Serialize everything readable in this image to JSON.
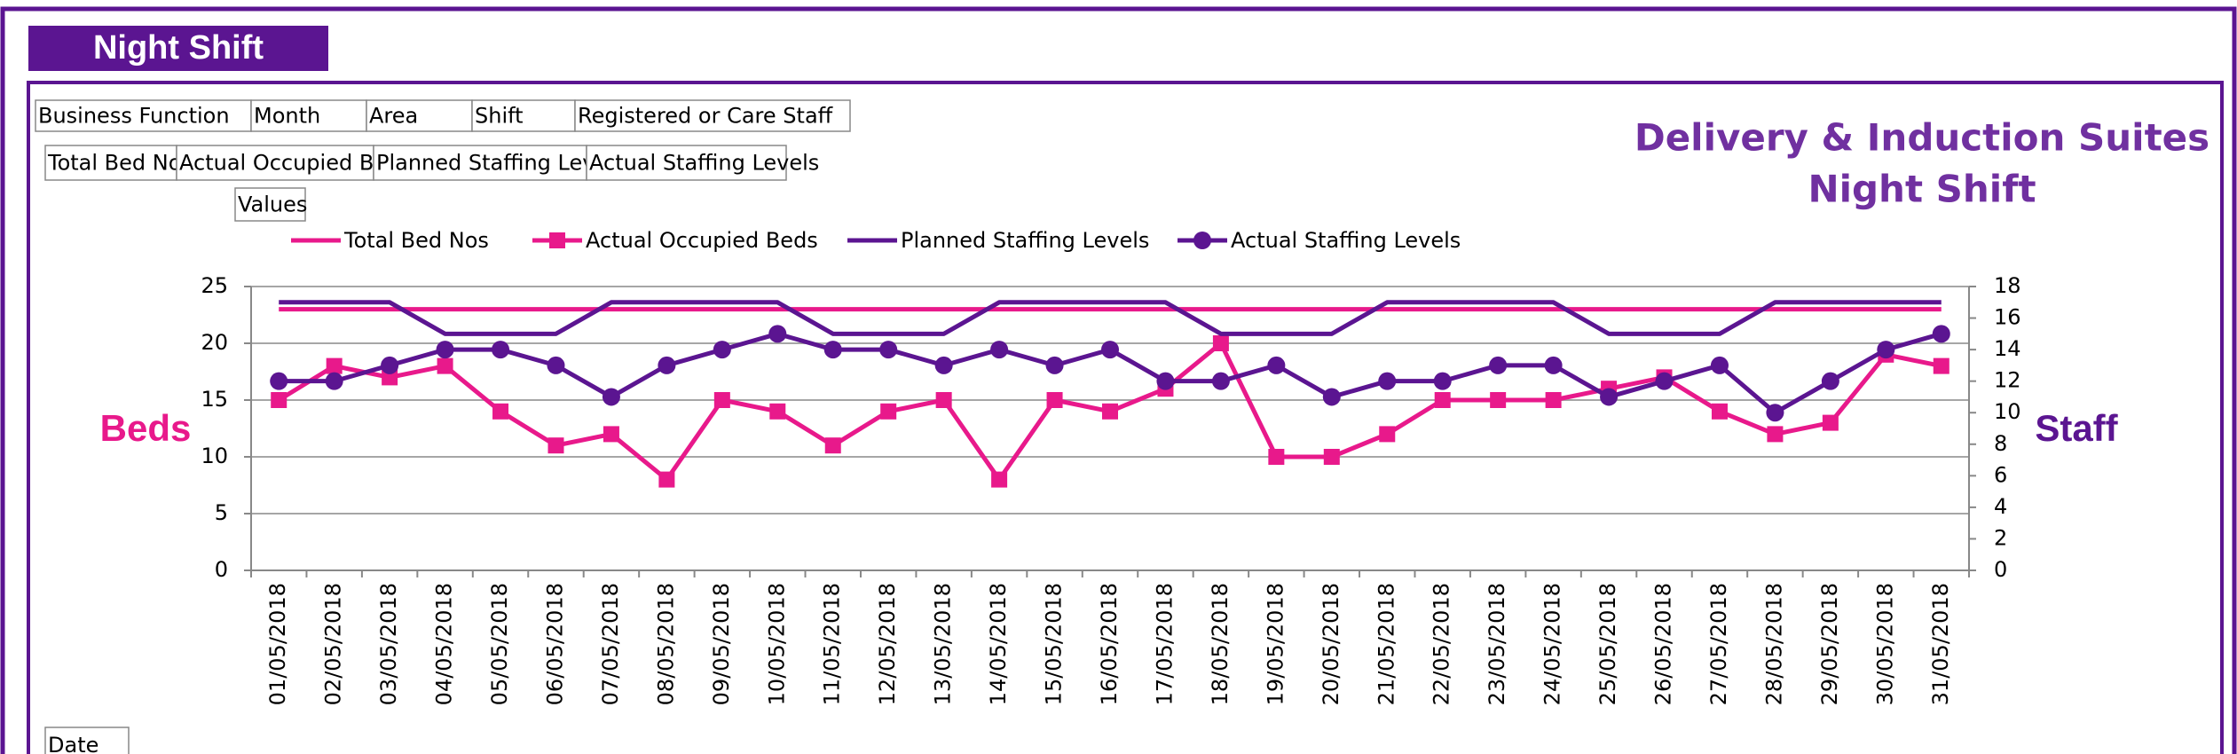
{
  "header": "Night Shift",
  "filter_fields": [
    "Business Function",
    "Month",
    "Area",
    "Shift",
    "Registered or Care Staff"
  ],
  "value_fields": [
    "Total Bed Nos",
    "Actual Occupied Beds",
    "Planned Staffing Levels",
    "Actual Staffing Levels"
  ],
  "values_button": "Values",
  "axis_field": "Date",
  "chart_data": {
    "type": "line",
    "title": "Delivery & Induction Suites",
    "subtitle": "Night Shift",
    "y_label": "Beds",
    "y2_label": "Staff",
    "categories": [
      "01/05/2018",
      "02/05/2018",
      "03/05/2018",
      "04/05/2018",
      "05/05/2018",
      "06/05/2018",
      "07/05/2018",
      "08/05/2018",
      "09/05/2018",
      "10/05/2018",
      "11/05/2018",
      "12/05/2018",
      "13/05/2018",
      "14/05/2018",
      "15/05/2018",
      "16/05/2018",
      "17/05/2018",
      "18/05/2018",
      "19/05/2018",
      "20/05/2018",
      "21/05/2018",
      "22/05/2018",
      "23/05/2018",
      "24/05/2018",
      "25/05/2018",
      "26/05/2018",
      "27/05/2018",
      "28/05/2018",
      "29/05/2018",
      "30/05/2018",
      "31/05/2018"
    ],
    "series": [
      {
        "name": "Total Bed Nos",
        "color": "#e8198b",
        "marker": "none",
        "values": [
          23,
          23,
          23,
          23,
          23,
          23,
          23,
          23,
          23,
          23,
          23,
          23,
          23,
          23,
          23,
          23,
          23,
          23,
          23,
          23,
          23,
          23,
          23,
          23,
          23,
          23,
          23,
          23,
          23,
          23,
          23
        ]
      },
      {
        "name": "Actual Occupied Beds",
        "color": "#e8198b",
        "marker": "square",
        "values": [
          15,
          18,
          17,
          18,
          14,
          11,
          12,
          8,
          15,
          14,
          11,
          14,
          15,
          8,
          15,
          14,
          16,
          20,
          10,
          10,
          12,
          15,
          15,
          15,
          16,
          17,
          14,
          12,
          13,
          19,
          18
        ]
      },
      {
        "name": "Planned Staffing Levels",
        "color": "#5b1591",
        "marker": "none",
        "axis": "y2",
        "values": [
          17,
          17,
          17,
          15,
          15,
          15,
          17,
          17,
          17,
          17,
          15,
          15,
          15,
          17,
          17,
          17,
          17,
          15,
          15,
          15,
          17,
          17,
          17,
          17,
          15,
          15,
          15,
          17,
          17,
          17,
          17
        ]
      },
      {
        "name": "Actual Staffing Levels",
        "color": "#5b1591",
        "marker": "circle",
        "axis": "y2",
        "values": [
          12,
          12,
          13,
          14,
          14,
          13,
          11,
          13,
          14,
          15,
          14,
          14,
          13,
          14,
          13,
          14,
          12,
          12,
          13,
          11,
          12,
          12,
          13,
          13,
          11,
          12,
          13,
          10,
          12,
          14,
          15
        ]
      }
    ],
    "ylim": [
      0,
      25
    ],
    "yticks": [
      0,
      5,
      10,
      15,
      20,
      25
    ],
    "y2lim": [
      0,
      18
    ],
    "y2ticks": [
      0,
      2,
      4,
      6,
      8,
      10,
      12,
      14,
      16,
      18
    ],
    "grid": true
  }
}
